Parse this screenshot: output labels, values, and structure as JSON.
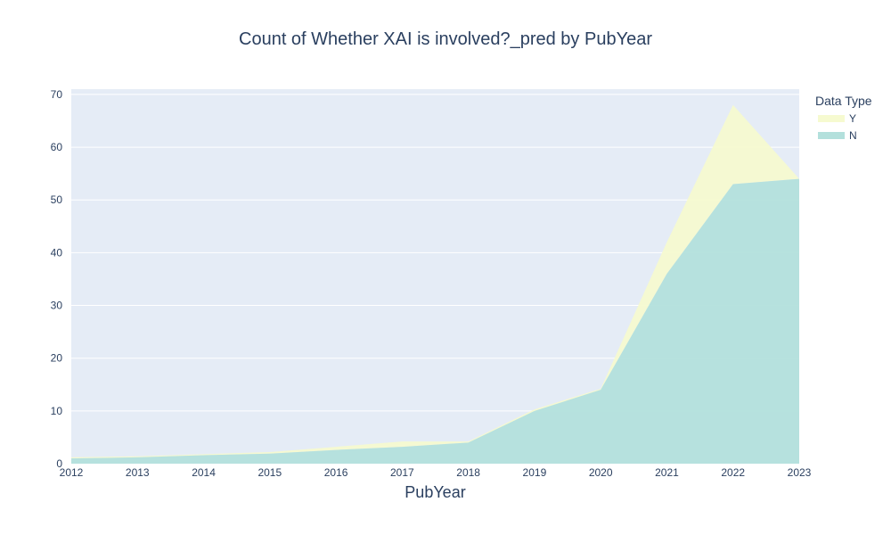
{
  "chart_data": {
    "type": "area",
    "stacked": true,
    "title": "Count of Whether XAI is involved?_pred by PubYear",
    "xlabel": "PubYear",
    "ylabel": "",
    "x": [
      2012,
      2013,
      2014,
      2015,
      2016,
      2017,
      2018,
      2019,
      2020,
      2021,
      2022,
      2023
    ],
    "xlim": [
      2012,
      2023
    ],
    "ylim": [
      0,
      71
    ],
    "yticks": [
      0,
      10,
      20,
      30,
      40,
      50,
      60,
      70
    ],
    "grid": true,
    "legend": {
      "title": "Data Type",
      "placement": "top-right"
    },
    "series": [
      {
        "name": "N",
        "color": "#b3e0dc",
        "values": [
          1,
          1.2,
          1.6,
          1.9,
          2.6,
          3.2,
          4,
          10,
          14,
          36,
          53,
          54
        ]
      },
      {
        "name": "Y",
        "color": "#f6fad0",
        "values": [
          0.2,
          0.2,
          0.2,
          0.3,
          0.6,
          1,
          0.2,
          0.3,
          0.2,
          6,
          15,
          0
        ]
      }
    ],
    "colors": {
      "plot_bg": "#e5ecf6",
      "grid": "#ffffff",
      "text": "#2a3f5f"
    }
  }
}
